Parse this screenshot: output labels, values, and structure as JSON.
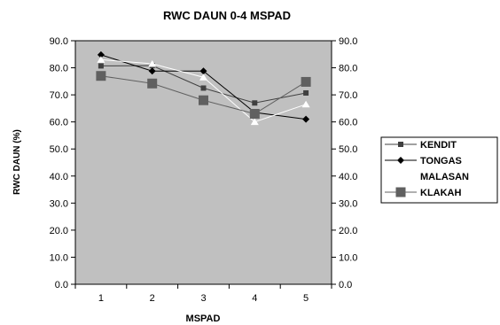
{
  "chart_data": {
    "type": "line",
    "title": "RWC DAUN 0-4 MSPAD",
    "xlabel": "MSPAD",
    "ylabel": "RWC DAUN (%)",
    "categories": [
      "1",
      "2",
      "3",
      "4",
      "5"
    ],
    "ylim": [
      0,
      90
    ],
    "yticks": [
      "0.0",
      "10.0",
      "20.0",
      "30.0",
      "40.0",
      "50.0",
      "60.0",
      "70.0",
      "80.0",
      "90.0"
    ],
    "secondary_yaxis": true,
    "grid": false,
    "plot_background": "#c0c0c0",
    "legend_position": "right",
    "series": [
      {
        "name": "KENDIT",
        "values": [
          80.7,
          80.8,
          72.5,
          67.0,
          70.7
        ],
        "color": "#404040",
        "marker": "square-small"
      },
      {
        "name": "TONGAS",
        "values": [
          84.8,
          78.8,
          78.8,
          63.5,
          61.0
        ],
        "color": "#000000",
        "marker": "diamond"
      },
      {
        "name": "MALASAN",
        "values": [
          83.0,
          81.5,
          76.5,
          60.0,
          66.5
        ],
        "color": "#ffffff",
        "marker": "triangle"
      },
      {
        "name": "KLAKAH",
        "values": [
          77.0,
          74.2,
          68.0,
          63.0,
          74.8
        ],
        "color": "#606060",
        "marker": "square-large"
      }
    ]
  }
}
